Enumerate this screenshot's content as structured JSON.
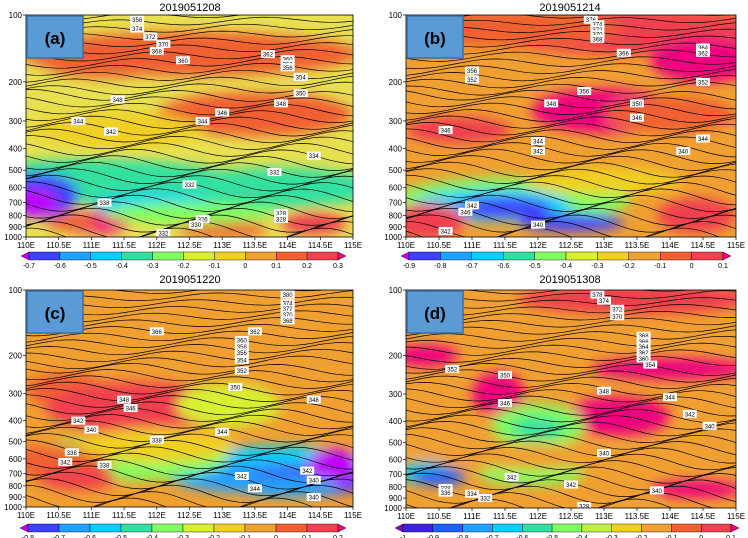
{
  "figure": {
    "panels": [
      {
        "label": "(a)",
        "title": "2019051208",
        "cbar": [
          "-0.7",
          "-0.6",
          "-0.5",
          "-0.4",
          "-0.3",
          "-0.2",
          "-0.1",
          "0",
          "0.1",
          "0.2",
          "0.3"
        ],
        "cbar_colors": [
          "#c000ff",
          "#4040ff",
          "#20a0ff",
          "#00d0ff",
          "#30e0a0",
          "#80ff60",
          "#d8f030",
          "#f0d020",
          "#f0a030",
          "#f06030",
          "#f04050",
          "#f00080"
        ]
      },
      {
        "label": "(b)",
        "title": "2019051214",
        "cbar": [
          "-0.9",
          "-0.8",
          "-0.7",
          "-0.6",
          "-0.5",
          "-0.4",
          "-0.3",
          "-0.2",
          "-0.1",
          "0",
          "0.1"
        ],
        "cbar_colors": [
          "#c000ff",
          "#4040ff",
          "#20a0ff",
          "#00d0ff",
          "#30e0a0",
          "#80ff60",
          "#d8f030",
          "#f0d020",
          "#f0a030",
          "#f06030",
          "#f04050",
          "#f00080"
        ]
      },
      {
        "label": "(c)",
        "title": "2019051220",
        "cbar": [
          "-0.8",
          "-0.7",
          "-0.6",
          "-0.5",
          "-0.4",
          "-0.3",
          "-0.2",
          "-0.1",
          "0",
          "0.1",
          "0.2"
        ],
        "cbar_colors": [
          "#c000ff",
          "#4040ff",
          "#20a0ff",
          "#00d0ff",
          "#30e0a0",
          "#80ff60",
          "#d8f030",
          "#f0d020",
          "#f0a030",
          "#f06030",
          "#f04050",
          "#f00080"
        ]
      },
      {
        "label": "(d)",
        "title": "2019051308",
        "cbar": [
          "-1",
          "-0.9",
          "-0.8",
          "-0.7",
          "-0.6",
          "-0.5",
          "-0.4",
          "-0.3",
          "-0.2",
          "-0.1",
          "0",
          "0.1"
        ],
        "cbar_colors": [
          "#8000c0",
          "#4020e0",
          "#2060ff",
          "#20a0ff",
          "#00d0ff",
          "#30e0a0",
          "#80ff60",
          "#c0f040",
          "#f0d020",
          "#f0a030",
          "#f06030",
          "#f04050",
          "#f00080"
        ]
      }
    ],
    "x_ticks": [
      "110E",
      "110.5E",
      "111E",
      "111.5E",
      "112E",
      "112.5E",
      "113E",
      "113.5E",
      "114E",
      "114.5E",
      "115E"
    ],
    "y_ticks": [
      {
        "p": 100,
        "label": "100"
      },
      {
        "p": 200,
        "label": "200"
      },
      {
        "p": 300,
        "label": "300"
      },
      {
        "p": 400,
        "label": "400"
      },
      {
        "p": 500,
        "label": "500"
      },
      {
        "p": 600,
        "label": "600"
      },
      {
        "p": 700,
        "label": "700"
      },
      {
        "p": 800,
        "label": "800"
      },
      {
        "p": 900,
        "label": "900"
      },
      {
        "p": 1000,
        "label": "1000"
      }
    ]
  },
  "chart_data": [
    {
      "type": "heatmap",
      "title": "2019051208",
      "xlim": [
        110,
        115
      ],
      "ylim": [
        1000,
        100
      ],
      "y_scale": "log-pressure",
      "contour_labels": [
        "356",
        "374",
        "372",
        "370",
        "368",
        "360",
        "362",
        "360",
        "358",
        "356",
        "354",
        "350",
        "348",
        "346",
        "348",
        "344",
        "344",
        "342",
        "334",
        "332",
        "332",
        "338",
        "328",
        "326",
        "328",
        "330",
        "332"
      ]
    },
    {
      "type": "heatmap",
      "title": "2019051214",
      "xlim": [
        110,
        115
      ],
      "ylim": [
        1000,
        100
      ],
      "y_scale": "log-pressure",
      "contour_labels": [
        "376",
        "374",
        "372",
        "370",
        "368",
        "366",
        "364",
        "362",
        "356",
        "352",
        "356",
        "352",
        "348",
        "350",
        "346",
        "346",
        "344",
        "344",
        "342",
        "340",
        "342",
        "340",
        "346",
        "342"
      ]
    },
    {
      "type": "heatmap",
      "title": "2019051220",
      "xlim": [
        110,
        115
      ],
      "ylim": [
        1000,
        100
      ],
      "y_scale": "log-pressure",
      "contour_labels": [
        "380",
        "374",
        "372",
        "370",
        "368",
        "366",
        "362",
        "360",
        "358",
        "356",
        "354",
        "352",
        "350",
        "348",
        "348",
        "346",
        "344",
        "342",
        "340",
        "338",
        "336",
        "342",
        "338",
        "342",
        "344",
        "340",
        "342",
        "340"
      ]
    },
    {
      "type": "heatmap",
      "title": "2019051308",
      "xlim": [
        110,
        115
      ],
      "ylim": [
        1000,
        100
      ],
      "y_scale": "log-pressure",
      "contour_labels": [
        "378",
        "374",
        "372",
        "370",
        "368",
        "366",
        "364",
        "362",
        "360",
        "354",
        "352",
        "350",
        "348",
        "346",
        "344",
        "342",
        "340",
        "340",
        "342",
        "342",
        "338",
        "336",
        "334",
        "332",
        "340",
        "328"
      ]
    }
  ]
}
